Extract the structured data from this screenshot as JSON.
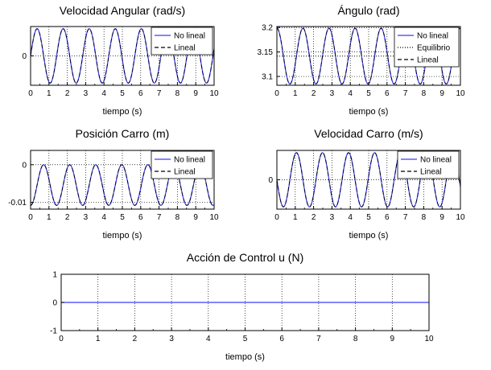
{
  "chart_data": [
    {
      "type": "line",
      "title": "Velocidad Angular (rad/s)",
      "xlabel": "tiempo (s)",
      "ylabel": "",
      "xlim": [
        0,
        10
      ],
      "ylim": [
        -0.27,
        0.27
      ],
      "x_ticks": [
        0,
        1,
        2,
        3,
        4,
        5,
        6,
        7,
        8,
        9,
        10
      ],
      "y_ticks": [
        0
      ],
      "y_tick_labels": [
        "0"
      ],
      "grid": true,
      "legend_position": "top-right",
      "signal": {
        "kind": "sin",
        "amplitude": 0.25,
        "period": 1.42,
        "phase": 0,
        "offset": 0
      },
      "reference_lines": [],
      "series": [
        {
          "name": "No lineal",
          "color": "#3a3aff",
          "dash": "solid"
        },
        {
          "name": "Lineal",
          "color": "#000000",
          "dash": "dashed"
        }
      ]
    },
    {
      "type": "line",
      "title": "Ángulo (rad)",
      "xlabel": "tiempo (s)",
      "ylabel": "",
      "xlim": [
        0,
        10
      ],
      "ylim": [
        3.082,
        3.202
      ],
      "x_ticks": [
        0,
        1,
        2,
        3,
        4,
        5,
        6,
        7,
        8,
        9,
        10
      ],
      "y_ticks": [
        3.1,
        3.15,
        3.2
      ],
      "y_tick_labels": [
        "3.1",
        "3.15",
        "3.2"
      ],
      "grid": true,
      "legend_position": "top-right",
      "signal": {
        "kind": "cos",
        "amplitude": 0.057,
        "period": 1.42,
        "phase": 0,
        "offset": 3.1416
      },
      "reference_lines": [
        {
          "y": 3.1416,
          "style": "dotted"
        }
      ],
      "series": [
        {
          "name": "No lineal",
          "color": "#3a3aff",
          "dash": "solid"
        },
        {
          "name": "Equilibrio",
          "color": "#000000",
          "dash": "dotted"
        },
        {
          "name": "Lineal",
          "color": "#000000",
          "dash": "dashed"
        }
      ]
    },
    {
      "type": "line",
      "title": "Posición Carro (m)",
      "xlabel": "tiempo (s)",
      "ylabel": "",
      "xlim": [
        0,
        10
      ],
      "ylim": [
        -0.0118,
        0.0038
      ],
      "x_ticks": [
        0,
        1,
        2,
        3,
        4,
        5,
        6,
        7,
        8,
        9,
        10
      ],
      "y_ticks": [
        -0.01,
        0
      ],
      "y_tick_labels": [
        "-0.01",
        "0"
      ],
      "grid": true,
      "legend_position": "top-right",
      "signal": {
        "kind": "negcos",
        "amplitude": 0.0054,
        "period": 1.42,
        "phase": 0,
        "offset": -0.0054
      },
      "reference_lines": [],
      "series": [
        {
          "name": "No lineal",
          "color": "#3a3aff",
          "dash": "solid"
        },
        {
          "name": "Lineal",
          "color": "#000000",
          "dash": "dashed"
        }
      ]
    },
    {
      "type": "line",
      "title": "Velocidad Carro (m/s)",
      "xlabel": "tiempo (s)",
      "ylabel": "",
      "xlim": [
        0,
        10
      ],
      "ylim": [
        -0.026,
        0.026
      ],
      "x_ticks": [
        0,
        1,
        2,
        3,
        4,
        5,
        6,
        7,
        8,
        9,
        10
      ],
      "y_ticks": [
        0
      ],
      "y_tick_labels": [
        "0"
      ],
      "grid": true,
      "legend_position": "top-right",
      "signal": {
        "kind": "negsin",
        "amplitude": 0.024,
        "period": 1.42,
        "phase": 0,
        "offset": 0
      },
      "reference_lines": [],
      "series": [
        {
          "name": "No lineal",
          "color": "#3a3aff",
          "dash": "solid"
        },
        {
          "name": "Lineal",
          "color": "#000000",
          "dash": "dashed"
        }
      ]
    },
    {
      "type": "line",
      "title": "Acción de Control u (N)",
      "xlabel": "tiempo (s)",
      "ylabel": "",
      "xlim": [
        0,
        10
      ],
      "ylim": [
        -1,
        1
      ],
      "x_ticks": [
        0,
        1,
        2,
        3,
        4,
        5,
        6,
        7,
        8,
        9,
        10
      ],
      "y_ticks": [
        -1,
        0,
        1
      ],
      "y_tick_labels": [
        "-1",
        "0",
        "1"
      ],
      "grid": true,
      "legend_position": "none",
      "signal": {
        "kind": "const",
        "amplitude": 0,
        "period": 1,
        "phase": 0,
        "offset": 0
      },
      "reference_lines": [],
      "series": [
        {
          "name": "",
          "color": "#3a3aff",
          "dash": "solid"
        }
      ]
    }
  ]
}
